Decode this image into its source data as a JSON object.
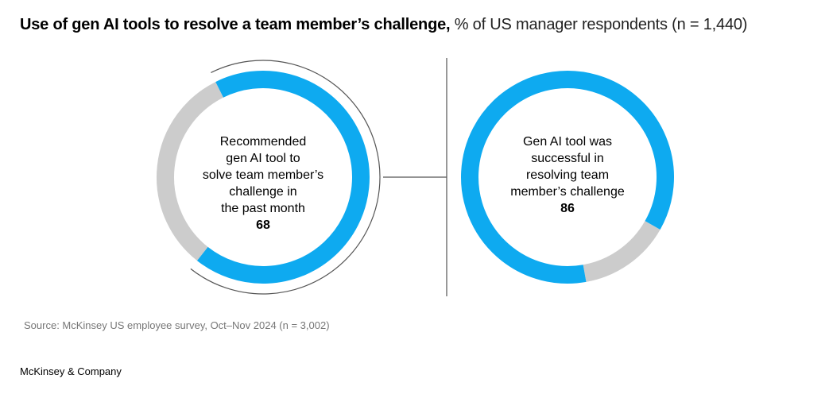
{
  "title": {
    "bold": "Use of gen AI tools to resolve a team member’s challenge,",
    "sub": "% of US manager respondents (n = 1,440)"
  },
  "chart_data": [
    {
      "type": "pie",
      "subtype": "donut",
      "label_lines": [
        "Recommended",
        "gen AI tool to",
        "solve team member’s",
        "challenge in",
        "the past month"
      ],
      "value": 68,
      "remainder": 32,
      "colors": {
        "value": "#0eaaf0",
        "remainder": "#cccccc"
      }
    },
    {
      "type": "pie",
      "subtype": "donut",
      "label_lines": [
        "Gen AI tool was",
        "successful in",
        "resolving team",
        "member’s challenge"
      ],
      "value": 86,
      "remainder": 14,
      "colors": {
        "value": "#0eaaf0",
        "remainder": "#cccccc"
      }
    }
  ],
  "source": "Source: McKinsey US employee survey, Oct–Nov 2024 (n = 3,002)",
  "brand": "McKinsey & Company",
  "colors": {
    "accent": "#0eaaf0",
    "remainder": "#cccccc",
    "connector": "#555555"
  }
}
